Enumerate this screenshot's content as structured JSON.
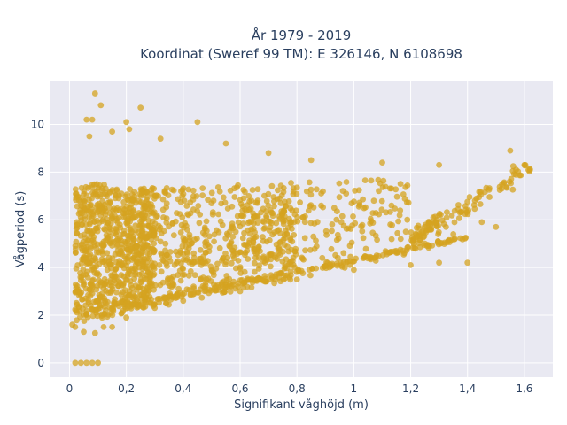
{
  "chart_data": {
    "type": "scatter",
    "title_lines": [
      "År 1979 - 2019",
      "Koordinat (Sweref 99 TM): E 326146, N 6108698"
    ],
    "xlabel": "Signifikant våghöjd (m)",
    "ylabel": "Vågperiod (s)",
    "xlim": [
      -0.07,
      1.7
    ],
    "ylim": [
      -0.6,
      11.8
    ],
    "x_ticks": [
      0,
      0.2,
      0.4,
      0.6,
      0.8,
      1.0,
      1.2,
      1.4,
      1.6
    ],
    "x_tick_labels": [
      "0",
      "0,2",
      "0,4",
      "0,6",
      "0,8",
      "1",
      "1,2",
      "1,4",
      "1,6"
    ],
    "y_ticks": [
      0,
      2,
      4,
      6,
      8,
      10
    ],
    "y_tick_labels": [
      "0",
      "2",
      "4",
      "6",
      "8",
      "10"
    ],
    "grid": true,
    "legend": "none",
    "colors": {
      "marker": "#d4a320",
      "plot_bg": "#e9e9f2",
      "grid": "#ffffff",
      "text": "#2a3f5f"
    },
    "series": [
      {
        "point_count": 1600,
        "points": [
          [
            0.01,
            1.6
          ],
          [
            0.02,
            1.5
          ],
          [
            0.05,
            1.3
          ],
          [
            0.09,
            1.25
          ],
          [
            0.15,
            1.5
          ],
          [
            0.09,
            11.3
          ],
          [
            0.11,
            10.8
          ],
          [
            0.06,
            10.2
          ],
          [
            0.08,
            10.2
          ],
          [
            0.2,
            10.1
          ],
          [
            0.25,
            10.7
          ],
          [
            0.45,
            10.1
          ],
          [
            0.07,
            9.5
          ],
          [
            0.15,
            9.7
          ],
          [
            0.21,
            9.8
          ],
          [
            0.32,
            9.4
          ],
          [
            0.55,
            9.2
          ],
          [
            0.7,
            8.8
          ],
          [
            0.85,
            8.5
          ],
          [
            1.1,
            8.4
          ],
          [
            1.3,
            8.3
          ],
          [
            1.55,
            8.9
          ],
          [
            1.6,
            8.3
          ],
          [
            1.62,
            8.1
          ],
          [
            1.4,
            4.2
          ],
          [
            1.3,
            4.2
          ],
          [
            1.2,
            4.1
          ],
          [
            1.0,
            3.9
          ],
          [
            0.8,
            3.5
          ],
          [
            0.6,
            3.0
          ],
          [
            0.4,
            2.6
          ],
          [
            0.3,
            2.3
          ],
          [
            0.2,
            1.9
          ],
          [
            0.12,
            1.5
          ],
          [
            1.5,
            5.7
          ],
          [
            1.45,
            5.9
          ],
          [
            1.35,
            5.4
          ],
          [
            1.25,
            5.0
          ],
          [
            0.02,
            0.0
          ],
          [
            0.04,
            0.0
          ],
          [
            0.06,
            0.0
          ],
          [
            0.08,
            0.0
          ],
          [
            0.1,
            0.0
          ]
        ]
      }
    ]
  }
}
